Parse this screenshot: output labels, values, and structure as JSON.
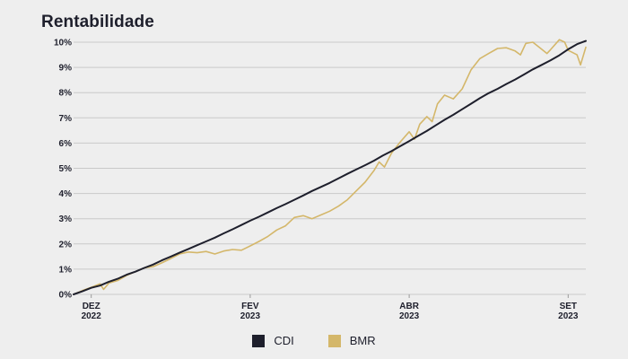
{
  "chart_data": {
    "type": "line",
    "title": "Rentabilidade",
    "xlabel": "",
    "ylabel": "",
    "ylim": [
      0,
      10
    ],
    "x_ticks": [
      {
        "month": "DEZ",
        "year": "2022",
        "week": 1
      },
      {
        "month": "FEV",
        "year": "2023",
        "week": 10
      },
      {
        "month": "ABR",
        "year": "2023",
        "week": 19
      },
      {
        "month": "SET",
        "year": "2023",
        "week": 28
      }
    ],
    "y_ticks": [
      0,
      1,
      2,
      3,
      4,
      5,
      6,
      7,
      8,
      9,
      10
    ],
    "y_tick_suffix": "%",
    "grid": true,
    "legend_position": "bottom",
    "x_week_range": [
      0,
      29
    ],
    "series": [
      {
        "name": "CDI",
        "color": "#1e1f2c",
        "values": [
          [
            0,
            0.0
          ],
          [
            0.5,
            0.12
          ],
          [
            1,
            0.26
          ],
          [
            1.5,
            0.35
          ],
          [
            2,
            0.5
          ],
          [
            2.5,
            0.62
          ],
          [
            3,
            0.78
          ],
          [
            3.5,
            0.9
          ],
          [
            4,
            1.05
          ],
          [
            4.5,
            1.18
          ],
          [
            5,
            1.35
          ],
          [
            5.5,
            1.5
          ],
          [
            6,
            1.65
          ],
          [
            6.5,
            1.8
          ],
          [
            7,
            1.95
          ],
          [
            7.5,
            2.1
          ],
          [
            8,
            2.25
          ],
          [
            8.5,
            2.42
          ],
          [
            9,
            2.58
          ],
          [
            9.5,
            2.75
          ],
          [
            10,
            2.92
          ],
          [
            10.5,
            3.08
          ],
          [
            11,
            3.25
          ],
          [
            11.5,
            3.42
          ],
          [
            12,
            3.58
          ],
          [
            12.5,
            3.75
          ],
          [
            13,
            3.92
          ],
          [
            13.5,
            4.1
          ],
          [
            14,
            4.26
          ],
          [
            14.5,
            4.42
          ],
          [
            15,
            4.6
          ],
          [
            15.5,
            4.78
          ],
          [
            16,
            4.95
          ],
          [
            16.5,
            5.12
          ],
          [
            17,
            5.3
          ],
          [
            17.5,
            5.5
          ],
          [
            18,
            5.68
          ],
          [
            18.5,
            5.88
          ],
          [
            19,
            6.08
          ],
          [
            19.5,
            6.28
          ],
          [
            20,
            6.48
          ],
          [
            20.5,
            6.7
          ],
          [
            21,
            6.92
          ],
          [
            21.5,
            7.12
          ],
          [
            22,
            7.34
          ],
          [
            22.5,
            7.56
          ],
          [
            23,
            7.78
          ],
          [
            23.5,
            7.98
          ],
          [
            24,
            8.15
          ],
          [
            24.5,
            8.34
          ],
          [
            25,
            8.52
          ],
          [
            25.5,
            8.72
          ],
          [
            26,
            8.92
          ],
          [
            26.5,
            9.1
          ],
          [
            27,
            9.28
          ],
          [
            27.5,
            9.48
          ],
          [
            28,
            9.72
          ],
          [
            28.5,
            9.92
          ],
          [
            29,
            10.05
          ]
        ]
      },
      {
        "name": "BMR",
        "color": "#d4b76a",
        "values": [
          [
            0,
            0.0
          ],
          [
            0.5,
            0.15
          ],
          [
            1,
            0.28
          ],
          [
            1.5,
            0.42
          ],
          [
            1.7,
            0.2
          ],
          [
            2,
            0.45
          ],
          [
            2.5,
            0.55
          ],
          [
            3,
            0.75
          ],
          [
            3.5,
            0.9
          ],
          [
            4,
            1.05
          ],
          [
            4.5,
            1.1
          ],
          [
            5,
            1.25
          ],
          [
            5.5,
            1.42
          ],
          [
            6,
            1.6
          ],
          [
            6.5,
            1.68
          ],
          [
            7,
            1.65
          ],
          [
            7.5,
            1.7
          ],
          [
            8,
            1.6
          ],
          [
            8.5,
            1.72
          ],
          [
            9,
            1.78
          ],
          [
            9.5,
            1.75
          ],
          [
            10,
            1.92
          ],
          [
            10.5,
            2.1
          ],
          [
            11,
            2.3
          ],
          [
            11.5,
            2.55
          ],
          [
            12,
            2.72
          ],
          [
            12.5,
            3.05
          ],
          [
            13,
            3.12
          ],
          [
            13.5,
            3.0
          ],
          [
            14,
            3.15
          ],
          [
            14.5,
            3.3
          ],
          [
            15,
            3.5
          ],
          [
            15.5,
            3.75
          ],
          [
            16,
            4.1
          ],
          [
            16.5,
            4.45
          ],
          [
            17,
            4.9
          ],
          [
            17.3,
            5.25
          ],
          [
            17.6,
            5.05
          ],
          [
            18,
            5.6
          ],
          [
            18.5,
            6.05
          ],
          [
            19,
            6.45
          ],
          [
            19.3,
            6.15
          ],
          [
            19.6,
            6.75
          ],
          [
            20,
            7.05
          ],
          [
            20.3,
            6.85
          ],
          [
            20.6,
            7.55
          ],
          [
            21,
            7.9
          ],
          [
            21.5,
            7.75
          ],
          [
            22,
            8.15
          ],
          [
            22.5,
            8.9
          ],
          [
            23,
            9.35
          ],
          [
            23.5,
            9.55
          ],
          [
            24,
            9.75
          ],
          [
            24.5,
            9.78
          ],
          [
            25,
            9.65
          ],
          [
            25.3,
            9.5
          ],
          [
            25.6,
            9.95
          ],
          [
            26,
            10.0
          ],
          [
            26.5,
            9.72
          ],
          [
            26.8,
            9.55
          ],
          [
            27,
            9.7
          ],
          [
            27.5,
            10.1
          ],
          [
            27.8,
            10.0
          ],
          [
            28,
            9.68
          ],
          [
            28.5,
            9.5
          ],
          [
            28.7,
            9.1
          ],
          [
            29,
            9.8
          ]
        ]
      }
    ]
  }
}
